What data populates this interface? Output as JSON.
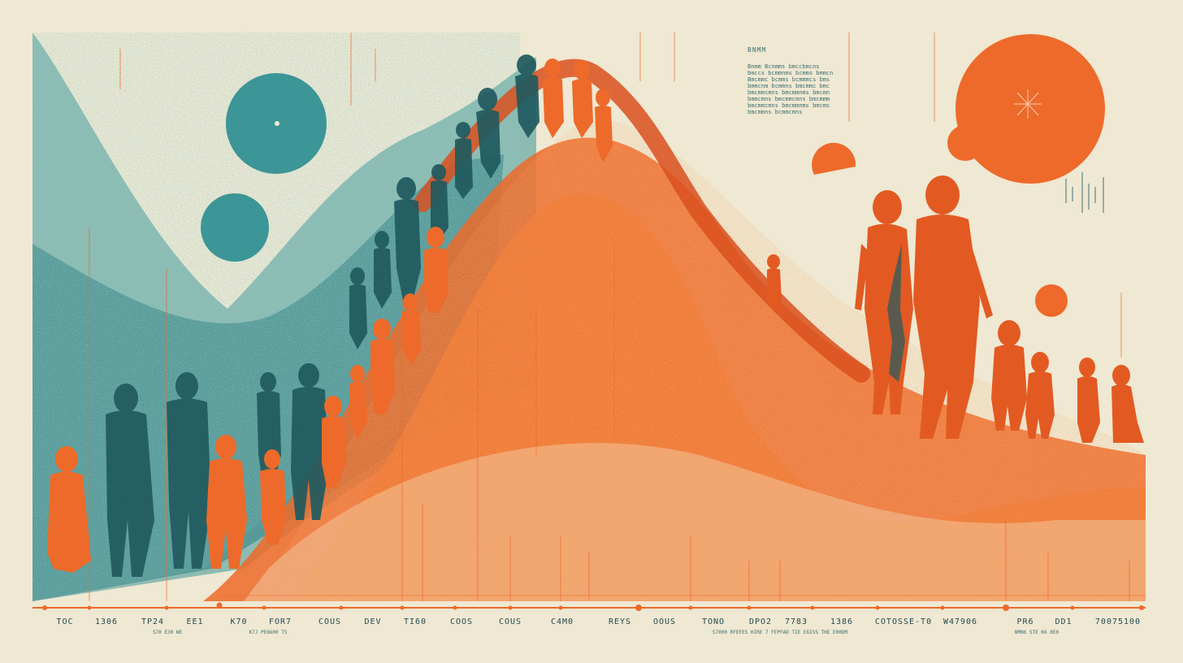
{
  "palette": {
    "background": "#efe8d2",
    "teal": "#3c9596",
    "teal_dark": "#205a5f",
    "orange": "#ed6a2a",
    "orange_dark": "#d9501e",
    "ink": "#264a52"
  },
  "annotation": {
    "title": "BNMM",
    "lines": [
      "Bnmm  Bcnmms  bmccbmcns",
      "bmccs bcmmnms bcmms bmmcn",
      "Bmcmmc bcmms bcmmmcs bms",
      "bmmcnm bcmmns bmcmmc bmc",
      "bmcmmcmns bmcmmnms bmcmn",
      "bmmcmns bmcmmcmns bmcmmm",
      "bmcmmcmns bmcmmnms bmcms",
      "bmcmmns bcmmcmns"
    ]
  },
  "axis": {
    "labels": [
      "TOC",
      "1306",
      "TP24",
      "EE1",
      "K70",
      "FOR7",
      "COUS",
      "DEV",
      "TI60",
      "COOS",
      "COUS",
      "C4M0",
      "REYS",
      "OOUS",
      "TONO",
      "DPO2",
      "7783",
      "1386",
      "COTOSSE-T0",
      "W47906",
      "PR6",
      "DD1",
      "70075100"
    ],
    "sublabels": [
      "S70 E30 WE",
      "K7J PE6600 T5",
      "S7000 RFEFES HIRE  7 FEPFAD TIE  E6ISS  THE E00DM",
      "BMN6 STE  K6 0E0"
    ]
  }
}
